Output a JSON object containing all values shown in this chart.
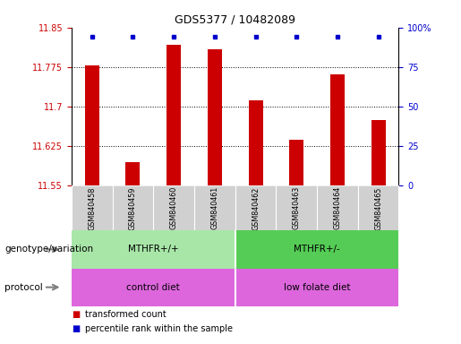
{
  "title": "GDS5377 / 10482089",
  "samples": [
    "GSM840458",
    "GSM840459",
    "GSM840460",
    "GSM840461",
    "GSM840462",
    "GSM840463",
    "GSM840464",
    "GSM840465"
  ],
  "bar_values": [
    11.778,
    11.595,
    11.818,
    11.808,
    11.712,
    11.638,
    11.762,
    11.675
  ],
  "ylim_left": [
    11.55,
    11.85
  ],
  "ylim_right": [
    0,
    100
  ],
  "yticks_left": [
    11.55,
    11.625,
    11.7,
    11.775,
    11.85
  ],
  "yticks_right": [
    0,
    25,
    50,
    75,
    100
  ],
  "bar_color": "#cc0000",
  "dot_color": "#0000cc",
  "sample_bg_color": "#d0d0d0",
  "genotype_color_1": "#a8e6a8",
  "genotype_color_2": "#55cc55",
  "protocol_color": "#dd66dd",
  "genotype_labels": [
    "MTHFR+/+",
    "MTHFR+/-"
  ],
  "protocol_labels": [
    "control diet",
    "low folate diet"
  ],
  "legend_red_label": "transformed count",
  "legend_blue_label": "percentile rank within the sample",
  "title_fontsize": 9,
  "axis_fontsize": 7,
  "label_fontsize": 7.5,
  "annotation_fontsize": 7.5
}
